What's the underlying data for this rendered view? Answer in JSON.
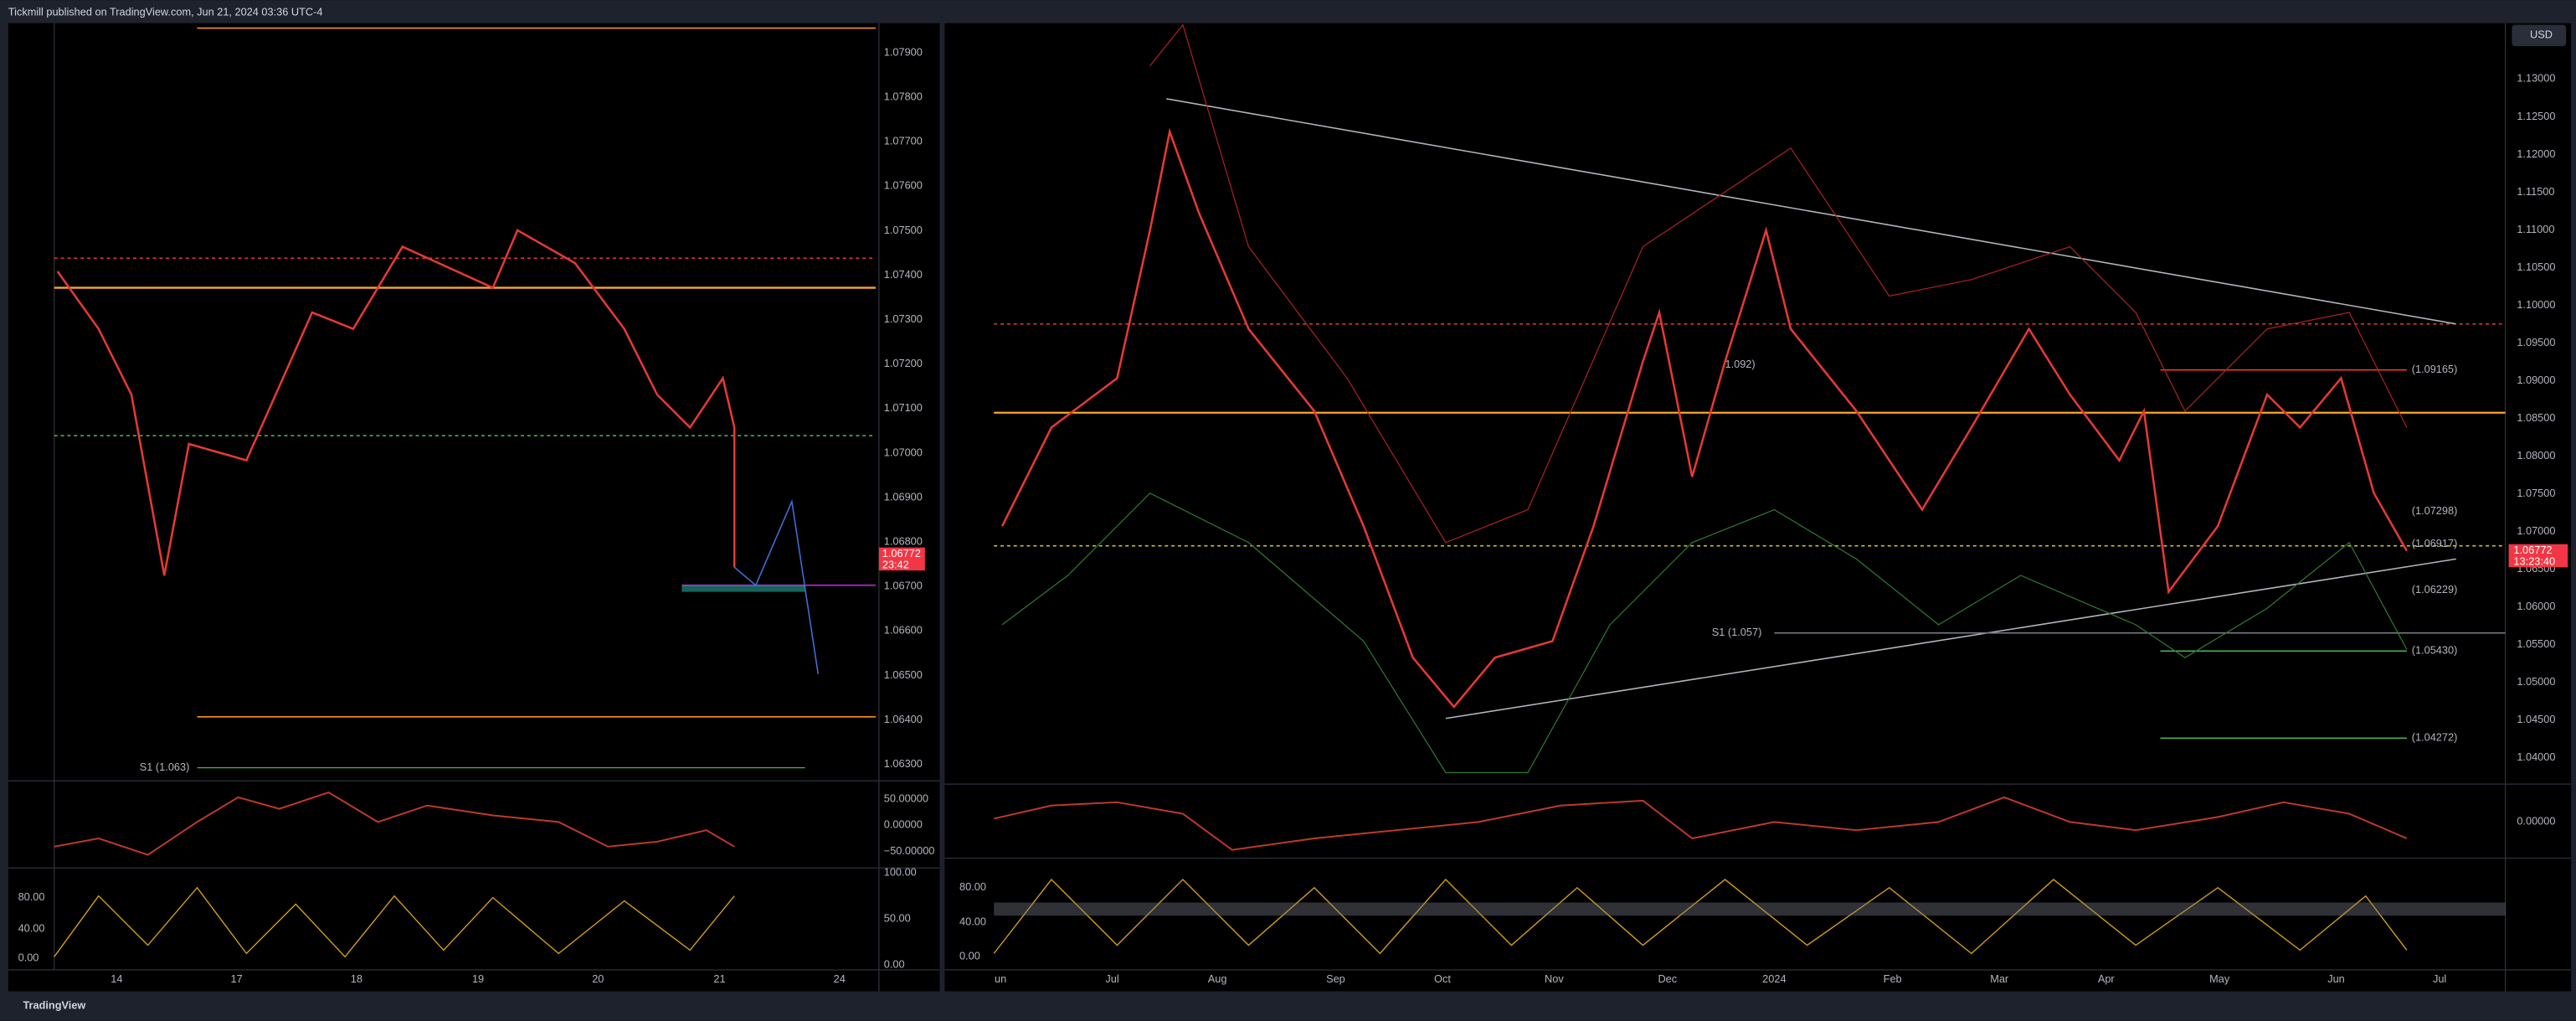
{
  "header": {
    "publisher": "Tickmill published on TradingView.com, Jun 21, 2024 03:36 UTC-4"
  },
  "left_chart": {
    "price_labels": [
      "1.07900",
      "1.07800",
      "1.07700",
      "1.07600",
      "1.07500",
      "1.07400",
      "1.07300",
      "1.07200",
      "1.07100",
      "1.07000",
      "1.06900",
      "1.06800",
      "1.06700",
      "1.06600",
      "1.06500",
      "1.06400",
      "1.06300"
    ],
    "date_labels": [
      "14",
      "17",
      "18",
      "19",
      "20",
      "21",
      "24"
    ],
    "osc_labels": [
      "50.00000",
      "0.00000",
      "−50.00000"
    ],
    "stoch_axis_labels": [
      "100.00",
      "50.00",
      "0.00"
    ],
    "stoch_left_labels": [
      "80.00",
      "40.00",
      "0.00"
    ],
    "annotations": [
      "S1 (1.063)"
    ],
    "price_tag": {
      "price": "1.06772",
      "timer": "23:42"
    }
  },
  "right_chart": {
    "currency_button": "USD",
    "price_labels": [
      "1.13000",
      "1.12500",
      "1.12000",
      "1.11500",
      "1.11000",
      "1.10500",
      "1.10000",
      "1.09500",
      "1.09000",
      "1.08500",
      "1.08000",
      "1.07500",
      "1.07000",
      "1.06500",
      "1.06000",
      "1.05500",
      "1.05000",
      "1.04500",
      "1.04000"
    ],
    "date_labels": [
      "un",
      "Jul",
      "Aug",
      "Sep",
      "Oct",
      "Nov",
      "Dec",
      "2024",
      "Feb",
      "Mar",
      "Apr",
      "May",
      "Jun",
      "Jul"
    ],
    "osc_labels": [
      "0.00000"
    ],
    "stoch_left_labels": [
      "80.00",
      "40.00",
      "0.00"
    ],
    "annotations": [
      "(1.09165)",
      "1.092)",
      "(1.07298)",
      "(1.06917)",
      "(1.06229)",
      "S1 (1.057)",
      "(1.05430)",
      "(1.04272)"
    ],
    "price_tag": {
      "price": "1.06772",
      "timer": "13:23:40"
    }
  },
  "footer": {
    "brand": "TradingView"
  }
}
